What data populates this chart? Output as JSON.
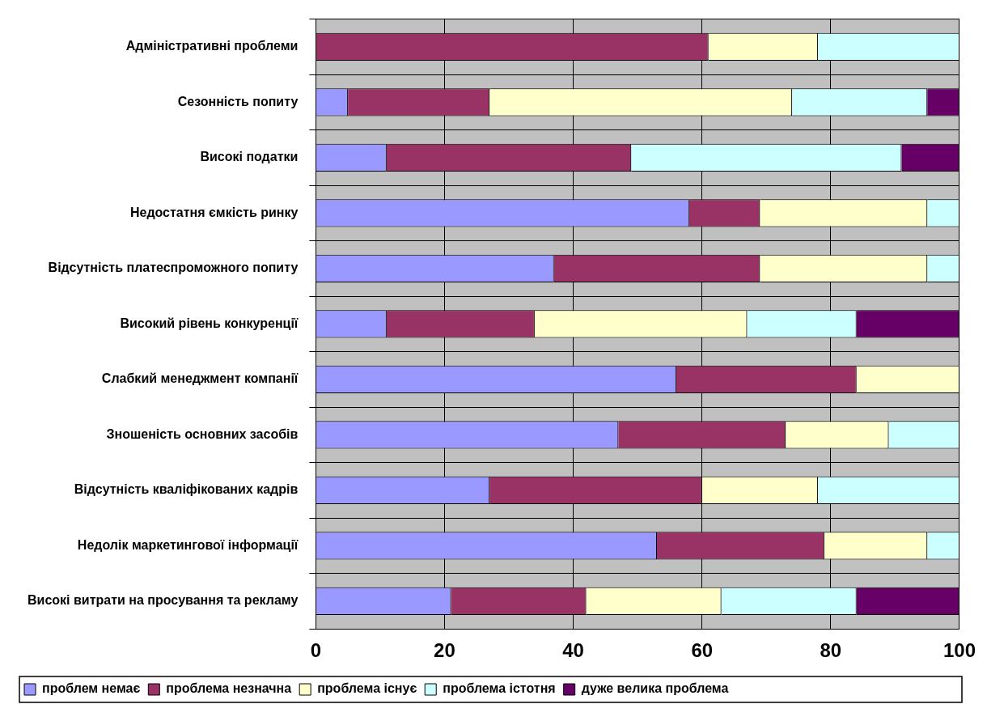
{
  "chart_data": {
    "type": "bar",
    "orientation": "horizontal",
    "stacked": true,
    "categories": [
      "Адміністративні проблеми",
      "Сезонність попиту",
      "Високі податки",
      "Недостатня ємкість ринку",
      "Відсутність платеспроможного попиту",
      "Високий рівень конкуренції",
      "Слабкий менеджмент компанії",
      "Зношеність основних засобів",
      "Відсутність кваліфікованих кадрів",
      "Недолік маркетингової інформації",
      "Високі витрати на просування та рекламу"
    ],
    "series": [
      {
        "name": "проблем немає",
        "color": "#9999ff",
        "values": [
          0,
          5,
          11,
          58,
          37,
          11,
          56,
          47,
          27,
          53,
          21
        ]
      },
      {
        "name": "проблема незначна",
        "color": "#993366",
        "values": [
          61,
          22,
          38,
          11,
          32,
          23,
          28,
          26,
          33,
          26,
          21
        ]
      },
      {
        "name": "проблема існує",
        "color": "#ffffcc",
        "values": [
          17,
          47,
          0,
          26,
          26,
          33,
          16,
          16,
          18,
          16,
          21
        ]
      },
      {
        "name": "проблема істотня",
        "color": "#ccffff",
        "values": [
          22,
          21,
          42,
          5,
          5,
          17,
          0,
          11,
          22,
          5,
          21
        ]
      },
      {
        "name": "дуже велика проблема",
        "color": "#660066",
        "values": [
          0,
          5,
          9,
          0,
          0,
          16,
          0,
          0,
          0,
          0,
          16
        ]
      }
    ],
    "xlim": [
      0,
      100
    ],
    "xticks": [
      0,
      20,
      40,
      60,
      80,
      100
    ],
    "grid": true,
    "legend": "bottom"
  }
}
